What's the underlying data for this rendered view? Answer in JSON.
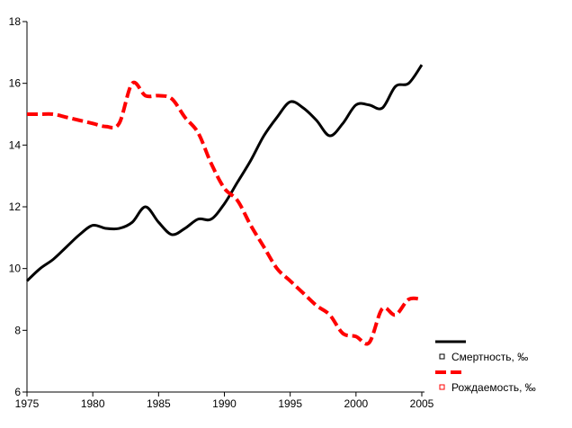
{
  "chart_data": {
    "type": "line",
    "title": "",
    "xlabel": "",
    "ylabel": "",
    "xlim": [
      1975,
      2005
    ],
    "ylim": [
      6,
      18
    ],
    "x_ticks": [
      1975,
      1980,
      1985,
      1990,
      1995,
      2000,
      2005
    ],
    "y_ticks": [
      6,
      8,
      10,
      12,
      14,
      16,
      18
    ],
    "grid": false,
    "legend_position": "bottom-right",
    "series": [
      {
        "name": "Смертность, ‰",
        "color": "#000000",
        "line_style": "solid",
        "marker": "square-open",
        "points": [
          [
            1975,
            9.6
          ],
          [
            1976,
            10.0
          ],
          [
            1977,
            10.3
          ],
          [
            1978,
            10.7
          ],
          [
            1979,
            11.1
          ],
          [
            1980,
            11.4
          ],
          [
            1981,
            11.3
          ],
          [
            1982,
            11.3
          ],
          [
            1983,
            11.5
          ],
          [
            1984,
            12.0
          ],
          [
            1985,
            11.5
          ],
          [
            1986,
            11.1
          ],
          [
            1987,
            11.3
          ],
          [
            1988,
            11.6
          ],
          [
            1989,
            11.6
          ],
          [
            1990,
            12.1
          ],
          [
            1991,
            12.8
          ],
          [
            1992,
            13.5
          ],
          [
            1993,
            14.3
          ],
          [
            1994,
            14.9
          ],
          [
            1995,
            15.4
          ],
          [
            1996,
            15.2
          ],
          [
            1997,
            14.8
          ],
          [
            1998,
            14.3
          ],
          [
            1999,
            14.7
          ],
          [
            2000,
            15.3
          ],
          [
            2001,
            15.3
          ],
          [
            2002,
            15.2
          ],
          [
            2003,
            15.9
          ],
          [
            2004,
            16.0
          ],
          [
            2005,
            16.6
          ]
        ]
      },
      {
        "name": "Рождаемость, ‰",
        "color": "#ff0000",
        "line_style": "dashed",
        "marker": "square-open",
        "points": [
          [
            1975,
            15.0
          ],
          [
            1976,
            15.0
          ],
          [
            1977,
            15.0
          ],
          [
            1978,
            14.9
          ],
          [
            1979,
            14.8
          ],
          [
            1980,
            14.7
          ],
          [
            1981,
            14.6
          ],
          [
            1982,
            14.7
          ],
          [
            1983,
            16.0
          ],
          [
            1984,
            15.6
          ],
          [
            1985,
            15.6
          ],
          [
            1986,
            15.5
          ],
          [
            1987,
            14.9
          ],
          [
            1988,
            14.4
          ],
          [
            1989,
            13.4
          ],
          [
            1990,
            12.6
          ],
          [
            1991,
            12.2
          ],
          [
            1992,
            11.4
          ],
          [
            1993,
            10.7
          ],
          [
            1994,
            10.0
          ],
          [
            1995,
            9.6
          ],
          [
            1996,
            9.2
          ],
          [
            1997,
            8.8
          ],
          [
            1998,
            8.5
          ],
          [
            1999,
            7.9
          ],
          [
            2000,
            7.8
          ],
          [
            2001,
            7.6
          ],
          [
            2002,
            8.7
          ],
          [
            2003,
            8.5
          ],
          [
            2004,
            9.0
          ],
          [
            2005,
            9.0
          ]
        ]
      }
    ]
  }
}
